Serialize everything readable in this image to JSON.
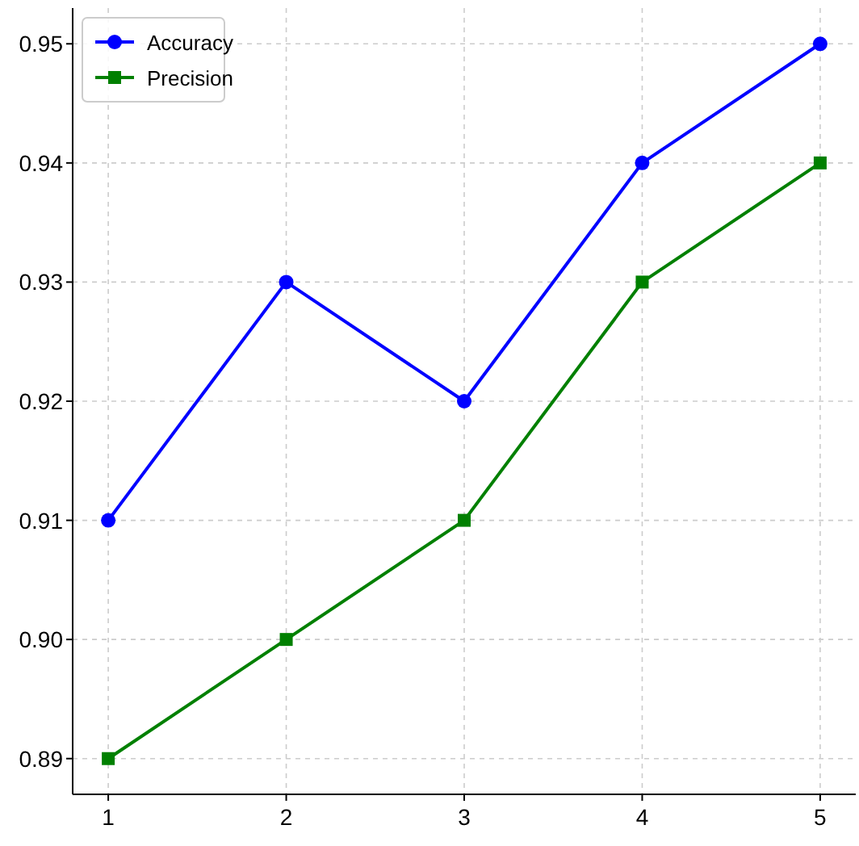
{
  "chart_data": {
    "type": "line",
    "x": [
      1,
      2,
      3,
      4,
      5
    ],
    "series": [
      {
        "name": "Accuracy",
        "color": "#0000ff",
        "values": [
          0.91,
          0.93,
          0.92,
          0.94,
          0.95
        ],
        "marker": "circle"
      },
      {
        "name": "Precision",
        "color": "#008000",
        "values": [
          0.89,
          0.9,
          0.91,
          0.93,
          0.94
        ],
        "marker": "square"
      }
    ],
    "xlim": [
      0.8,
      5.2
    ],
    "xticks": [
      1,
      2,
      3,
      4,
      5
    ],
    "ylim": [
      0.887,
      0.953
    ],
    "yticks": [
      {
        "value": 0.89,
        "label": "0.89"
      },
      {
        "value": 0.9,
        "label": "0.90"
      },
      {
        "value": 0.91,
        "label": "0.91"
      },
      {
        "value": 0.92,
        "label": "0.92"
      },
      {
        "value": 0.93,
        "label": "0.93"
      },
      {
        "value": 0.94,
        "label": "0.94"
      },
      {
        "value": 0.95,
        "label": "0.95"
      }
    ],
    "grid": true,
    "legend": "top left",
    "line_style": "solid"
  }
}
